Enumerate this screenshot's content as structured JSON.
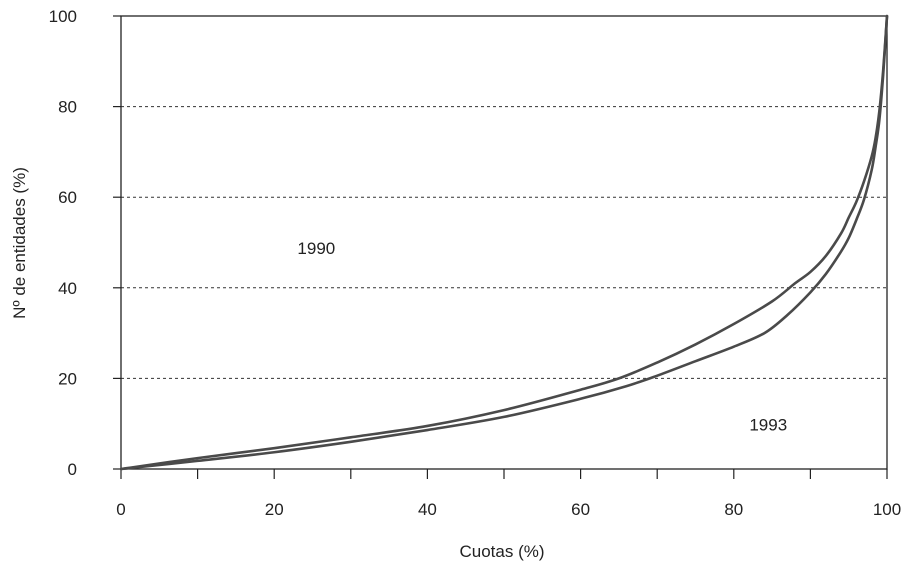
{
  "chart_data": {
    "type": "line",
    "xlabel": "Cuotas (%)",
    "ylabel": "Nº de entidades (%)",
    "xlim": [
      0,
      100
    ],
    "ylim": [
      0,
      100
    ],
    "x_ticks": [
      "0",
      "20",
      "40",
      "60",
      "80",
      "100"
    ],
    "x_tick_values": [
      0,
      20,
      40,
      60,
      80,
      100
    ],
    "x_minor_ticks": [
      10,
      30,
      50,
      70,
      90
    ],
    "y_ticks": [
      "0",
      "20",
      "40",
      "60",
      "80",
      "100"
    ],
    "y_tick_values": [
      0,
      20,
      40,
      60,
      80,
      100
    ],
    "grid": "horizontal dashed",
    "series": [
      {
        "name": "1990",
        "x": [
          0,
          10,
          20,
          30,
          40,
          50,
          60,
          65,
          70,
          75,
          80,
          85,
          88,
          90,
          92,
          94,
          95,
          96,
          97,
          98,
          98.5,
          99,
          99.5,
          100
        ],
        "y": [
          0,
          2.4,
          4.6,
          7.0,
          9.5,
          13.0,
          17.5,
          20.0,
          23.5,
          27.5,
          32.0,
          37.0,
          41.0,
          43.5,
          47.0,
          52.0,
          55.5,
          59.0,
          63.5,
          69.0,
          73.0,
          79.0,
          88.0,
          100
        ]
      },
      {
        "name": "1993",
        "x": [
          0,
          10,
          20,
          30,
          40,
          50,
          60,
          66,
          70,
          75,
          80,
          84,
          87,
          90,
          92,
          94,
          95,
          96,
          97,
          98,
          98.5,
          99,
          99.5,
          100
        ],
        "y": [
          0,
          1.8,
          3.7,
          6.0,
          8.6,
          11.5,
          15.5,
          18.3,
          20.6,
          23.8,
          27.0,
          30.0,
          34.0,
          39.0,
          43.0,
          48.0,
          51.0,
          55.0,
          59.5,
          66.0,
          71.0,
          77.0,
          87.0,
          100
        ]
      }
    ],
    "annotations": [
      {
        "text": "1990",
        "x": 25.5,
        "y": 47.5
      },
      {
        "text": "1993",
        "x": 84.5,
        "y": 8.5
      }
    ],
    "colors": {
      "line": "#4a4a4a",
      "axis": "#222222"
    }
  }
}
